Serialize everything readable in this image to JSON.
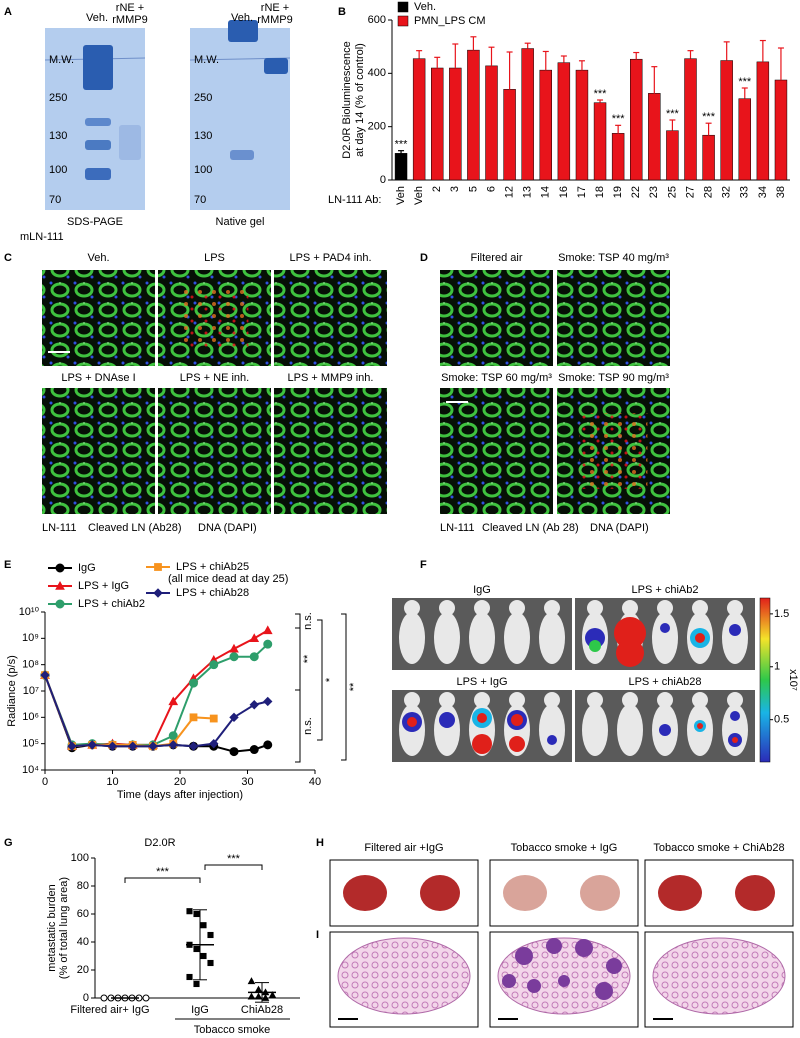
{
  "panel_labels": [
    "A",
    "B",
    "C",
    "D",
    "E",
    "F",
    "G",
    "H",
    "I"
  ],
  "panel_a": {
    "gels": [
      {
        "lane_1": "Veh.",
        "lane_2": [
          "rNE +",
          "rMMP9"
        ],
        "marker": "M.W.",
        "mw_labels": [
          250,
          130,
          100,
          70
        ],
        "caption": "SDS-PAGE"
      },
      {
        "lane_1": "Veh.",
        "lane_2": [
          "rNE +",
          "rMMP9"
        ],
        "marker": "M.W.",
        "mw_labels": [
          250,
          130,
          100,
          70
        ],
        "caption": "Native gel"
      }
    ],
    "sample": "mLN-111"
  },
  "panel_c": {
    "titles": [
      "Veh.",
      "LPS",
      "LPS + PAD4 inh.",
      "LPS + DNAse I",
      "LPS + NE inh.",
      "LPS + MMP9 inh."
    ],
    "legend": [
      "LN-111",
      "Cleaved LN (Ab28)",
      "DNA (DAPI)"
    ],
    "legend_colors": [
      "#1a9e1a",
      "#e8141b",
      "#2b3cc4"
    ]
  },
  "panel_d": {
    "titles": [
      "Filtered air",
      "Smoke: TSP 40 mg/m³",
      "Smoke: TSP 60 mg/m³",
      "Smoke: TSP 90 mg/m³"
    ],
    "legend": [
      "LN-111",
      "Cleaved LN (Ab 28)",
      "DNA (DAPI)"
    ],
    "legend_colors": [
      "#1a9e1a",
      "#e8141b",
      "#2b3cc4"
    ]
  },
  "panel_f": {
    "titles": [
      "IgG",
      "LPS + chiAb2",
      "LPS + IgG",
      "LPS + chiAb28"
    ],
    "colorbar": {
      "lim": [
        0.1,
        1.65
      ],
      "ticks": [
        0.5,
        1,
        1.5
      ],
      "label": "x10⁷"
    }
  },
  "panel_h": {
    "titles": [
      "Filtered air +IgG",
      "Tobacco smoke + IgG",
      "Tobacco smoke + ChiAb28"
    ]
  },
  "chart_data": [
    {
      "type": "bar",
      "ylabel": [
        "D2.0R Bioluminescence",
        "at day 14 (% of control)"
      ],
      "xlabel": "LN-111 Ab:",
      "categories": [
        "Veh",
        "Veh",
        "2",
        "3",
        "5",
        "6",
        "12",
        "13",
        "14",
        "16",
        "17",
        "18",
        "19",
        "22",
        "23",
        "25",
        "27",
        "28",
        "32",
        "33",
        "34",
        "38"
      ],
      "series": [
        {
          "name": "Veh.",
          "color": "#000000",
          "values": [
            100,
            null,
            null,
            null,
            null,
            null,
            null,
            null,
            null,
            null,
            null,
            null,
            null,
            null,
            null,
            null,
            null,
            null,
            null,
            null,
            null,
            null
          ],
          "errors": [
            10,
            null,
            null,
            null,
            null,
            null,
            null,
            null,
            null,
            null,
            null,
            null,
            null,
            null,
            null,
            null,
            null,
            null,
            null,
            null,
            null,
            null
          ],
          "significance": [
            "***",
            null,
            null,
            null,
            null,
            null,
            null,
            null,
            null,
            null,
            null,
            null,
            null,
            null,
            null,
            null,
            null,
            null,
            null,
            null,
            null,
            null
          ]
        },
        {
          "name": "PMN_LPS CM",
          "color": "#e8141b",
          "values": [
            null,
            455,
            420,
            420,
            487,
            428,
            340,
            493,
            412,
            440,
            412,
            290,
            175,
            453,
            325,
            185,
            455,
            168,
            448,
            305,
            443,
            375
          ],
          "errors": [
            null,
            30,
            40,
            90,
            50,
            70,
            140,
            20,
            70,
            25,
            35,
            10,
            30,
            25,
            100,
            40,
            30,
            45,
            70,
            40,
            80,
            120
          ],
          "significance": [
            null,
            null,
            null,
            null,
            null,
            null,
            null,
            null,
            null,
            null,
            null,
            "***",
            "***",
            null,
            null,
            "***",
            null,
            "***",
            null,
            "***",
            null,
            null
          ]
        }
      ],
      "ylim": [
        0,
        600
      ],
      "yticks": [
        0,
        200,
        400,
        600
      ]
    },
    {
      "type": "line",
      "log_y": true,
      "xlabel": "Time (days after injection)",
      "ylabel": "Radiance (p/s)",
      "xlim": [
        0,
        40
      ],
      "xticks": [
        0,
        10,
        20,
        30,
        40
      ],
      "ylim": [
        10000,
        10000000000
      ],
      "yticks": [
        {
          "value": 10000,
          "label": "10⁴"
        },
        {
          "value": 100000,
          "label": "10⁵"
        },
        {
          "value": 1000000,
          "label": "10⁶"
        },
        {
          "value": 10000000,
          "label": "10⁷"
        },
        {
          "value": 100000000,
          "label": "10⁸"
        },
        {
          "value": 1000000000,
          "label": "10⁹"
        },
        {
          "value": 10000000000,
          "label": "10¹⁰"
        }
      ],
      "series": [
        {
          "name": "IgG",
          "color": "#000000",
          "marker": "circle",
          "x": [
            0,
            4,
            7,
            10,
            13,
            16,
            19,
            22,
            25,
            28,
            31,
            33
          ],
          "values": [
            40000000,
            70000,
            90000,
            80000,
            80000,
            80000,
            90000,
            80000,
            80000,
            50000,
            60000,
            90000
          ]
        },
        {
          "name": "LPS + IgG",
          "color": "#e8141b",
          "marker": "triangle",
          "x": [
            0,
            4,
            7,
            10,
            13,
            16,
            19,
            22,
            25,
            28,
            31,
            33
          ],
          "values": [
            40000000,
            80000,
            90000,
            100000,
            90000,
            90000,
            4000000,
            30000000,
            150000000,
            400000000,
            1000000000,
            2000000000
          ]
        },
        {
          "name": "LPS +  chiAb2",
          "color": "#2e9e6b",
          "marker": "circle",
          "x": [
            0,
            4,
            7,
            10,
            13,
            16,
            19,
            22,
            25,
            28,
            31,
            33
          ],
          "values": [
            40000000,
            90000,
            100000,
            90000,
            90000,
            90000,
            200000,
            20000000,
            100000000,
            200000000,
            200000000,
            600000000
          ]
        },
        {
          "name": "LPS +  chiAb25",
          "color": "#f7931e",
          "marker": "square",
          "x": [
            0,
            4,
            7,
            10,
            13,
            16,
            19,
            22,
            25
          ],
          "values": [
            40000000,
            80000,
            90000,
            90000,
            90000,
            80000,
            100000,
            1000000,
            900000
          ]
        },
        {
          "name": "LPS +  chiAb28",
          "color": "#1f1f7a",
          "marker": "diamond",
          "x": [
            0,
            4,
            7,
            10,
            13,
            16,
            19,
            22,
            25,
            28,
            31,
            33
          ],
          "values": [
            40000000,
            80000,
            90000,
            80000,
            80000,
            80000,
            90000,
            80000,
            100000,
            1000000,
            3000000,
            4000000
          ]
        }
      ],
      "note": "(all mice dead at day 25)",
      "comparisons": [
        "n.s.",
        "**",
        "*",
        "**",
        "n.s."
      ]
    },
    {
      "type": "scatter",
      "title": "D2.0R",
      "ylabel": [
        "metastatic burden",
        "(% of total lung area)"
      ],
      "categories": [
        "Filtered air+ IgG",
        "IgG",
        "ChiAb28"
      ],
      "group_label": "Tobacco smoke",
      "markers": [
        "circle",
        "square",
        "triangle"
      ],
      "points": [
        [
          0,
          0,
          0,
          0,
          0,
          0,
          0
        ],
        [
          62,
          60,
          52,
          45,
          38,
          35,
          30,
          25,
          15,
          10
        ],
        [
          12,
          6,
          4,
          2,
          1,
          1,
          0
        ]
      ],
      "means": [
        0,
        38,
        4
      ],
      "sd": [
        0,
        25,
        7
      ],
      "significance": [
        "***",
        "***"
      ],
      "ylim": [
        0,
        100
      ],
      "yticks": [
        0,
        20,
        40,
        60,
        80,
        100
      ]
    }
  ]
}
